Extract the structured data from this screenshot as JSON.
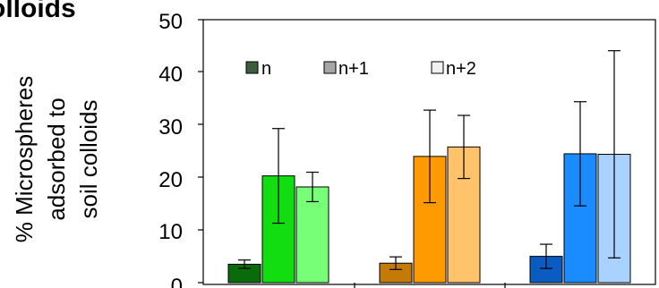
{
  "chart_data": {
    "type": "bar",
    "title": "olloids",
    "ylabel_lines": [
      "% Microspheres",
      "adsorbed to",
      "soil colloids"
    ],
    "ylim": [
      0,
      50
    ],
    "yticks": [
      "0",
      "10",
      "20",
      "30",
      "40",
      "50"
    ],
    "legend": {
      "placement": "top-left",
      "entries": [
        "n",
        "n+1",
        "n+2"
      ]
    },
    "groups": [
      {
        "values": [
          3.5,
          20.3,
          18.2
        ],
        "errors": [
          0.8,
          9.0,
          2.8
        ],
        "colors": [
          "#0a6b0a",
          "#11dd11",
          "#77ff77"
        ]
      },
      {
        "values": [
          3.7,
          24.0,
          25.8
        ],
        "errors": [
          1.2,
          8.8,
          6.0
        ],
        "colors": [
          "#c37a06",
          "#ff9a00",
          "#ffc46b"
        ]
      },
      {
        "values": [
          5.0,
          24.5,
          24.4
        ],
        "errors": [
          2.3,
          9.9,
          19.7
        ],
        "colors": [
          "#0a5bc2",
          "#1a8cff",
          "#aad2ff"
        ]
      }
    ],
    "legend_colors": [
      "#3d5e3d",
      "#a6a6a6",
      "#f0f0f0"
    ],
    "grid": false
  }
}
